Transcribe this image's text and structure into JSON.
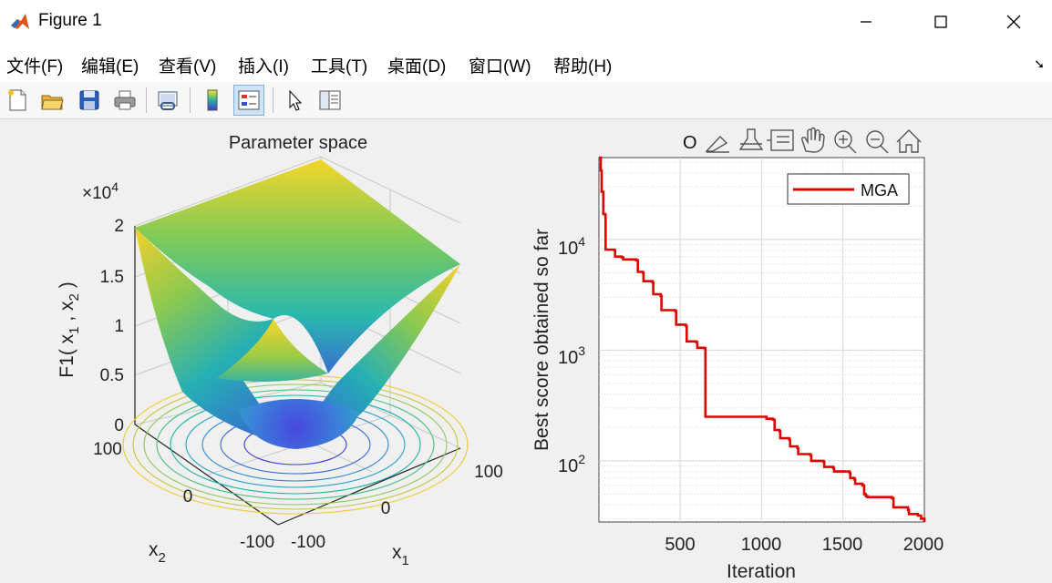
{
  "window": {
    "title": "Figure 1"
  },
  "menu": {
    "items": [
      "文件(F)",
      "编辑(E)",
      "查看(V)",
      "插入(I)",
      "工具(T)",
      "桌面(D)",
      "窗口(W)",
      "帮助(H)"
    ]
  },
  "toolbar": {
    "icons": [
      "new-figure-icon",
      "open-file-icon",
      "save-icon",
      "print-icon",
      "link-plot-icon",
      "colorbar-icon",
      "legend-icon",
      "edit-plot-pointer-icon",
      "property-inspector-icon"
    ]
  },
  "axes_toolbar": {
    "partial_label": "O",
    "icons": [
      "brush-icon",
      "data-tip-icon",
      "legend-toggle-icon",
      "pan-hand-icon",
      "zoom-in-icon",
      "zoom-out-icon",
      "home-restore-icon"
    ]
  },
  "chart_data": [
    {
      "type": "surface",
      "title": "Parameter space",
      "xlabel": "x",
      "xlabel_sub": "1",
      "ylabel": "x",
      "ylabel_sub": "2",
      "zlabel_main": "F1( x",
      "zlabel_sub1": "1",
      "zlabel_mid": " , x",
      "zlabel_sub2": "2",
      "zlabel_end": " )",
      "z_multiplier": "×10",
      "z_multiplier_exp": "4",
      "x_ticks": [
        "-100",
        "0",
        "100"
      ],
      "y_ticks": [
        "-100",
        "0",
        "100"
      ],
      "z_ticks": [
        "0",
        "0.5",
        "1",
        "1.5",
        "2"
      ],
      "xlim": [
        -100,
        100
      ],
      "ylim": [
        -100,
        100
      ],
      "zlim": [
        0,
        20000
      ],
      "function": "x1^2 + x2^2",
      "contours": true,
      "colormap": "parula"
    },
    {
      "type": "line",
      "yscale": "log",
      "xlabel": "Iteration",
      "ylabel": "Best score obtained so far",
      "x_ticks": [
        "500",
        "1000",
        "1500",
        "2000"
      ],
      "y_ticks": [
        "10",
        "10",
        "10"
      ],
      "y_tick_exps": [
        "2",
        "3",
        "4"
      ],
      "xlim": [
        1,
        2000
      ],
      "ylim": [
        28,
        55000
      ],
      "grid": true,
      "legend": "top-right",
      "series": [
        {
          "name": "MGA",
          "color": "#e00000",
          "points": [
            [
              1,
              55000
            ],
            [
              12,
              42000
            ],
            [
              18,
              27000
            ],
            [
              28,
              17000
            ],
            [
              40,
              16500
            ],
            [
              42,
              8100
            ],
            [
              95,
              8000
            ],
            [
              100,
              7000
            ],
            [
              140,
              6900
            ],
            [
              150,
              6600
            ],
            [
              230,
              6500
            ],
            [
              240,
              5100
            ],
            [
              270,
              5000
            ],
            [
              275,
              4200
            ],
            [
              330,
              4100
            ],
            [
              335,
              3200
            ],
            [
              380,
              3100
            ],
            [
              385,
              2300
            ],
            [
              470,
              2250
            ],
            [
              475,
              1700
            ],
            [
              535,
              1650
            ],
            [
              540,
              1200
            ],
            [
              600,
              1180
            ],
            [
              605,
              1050
            ],
            [
              650,
              1040
            ],
            [
              655,
              250
            ],
            [
              1020,
              250
            ],
            [
              1030,
              240
            ],
            [
              1070,
              235
            ],
            [
              1080,
              190
            ],
            [
              1110,
              185
            ],
            [
              1115,
              160
            ],
            [
              1170,
              155
            ],
            [
              1175,
              135
            ],
            [
              1220,
              130
            ],
            [
              1225,
              115
            ],
            [
              1300,
              112
            ],
            [
              1305,
              100
            ],
            [
              1380,
              98
            ],
            [
              1385,
              88
            ],
            [
              1440,
              86
            ],
            [
              1445,
              80
            ],
            [
              1540,
              78
            ],
            [
              1545,
              70
            ],
            [
              1570,
              68
            ],
            [
              1575,
              62
            ],
            [
              1620,
              60
            ],
            [
              1630,
              50
            ],
            [
              1640,
              48
            ],
            [
              1650,
              47
            ],
            [
              1800,
              46
            ],
            [
              1810,
              38
            ],
            [
              1900,
              36
            ],
            [
              1905,
              33
            ],
            [
              1960,
              32
            ],
            [
              1980,
              30
            ],
            [
              2000,
              28
            ]
          ]
        }
      ]
    }
  ]
}
